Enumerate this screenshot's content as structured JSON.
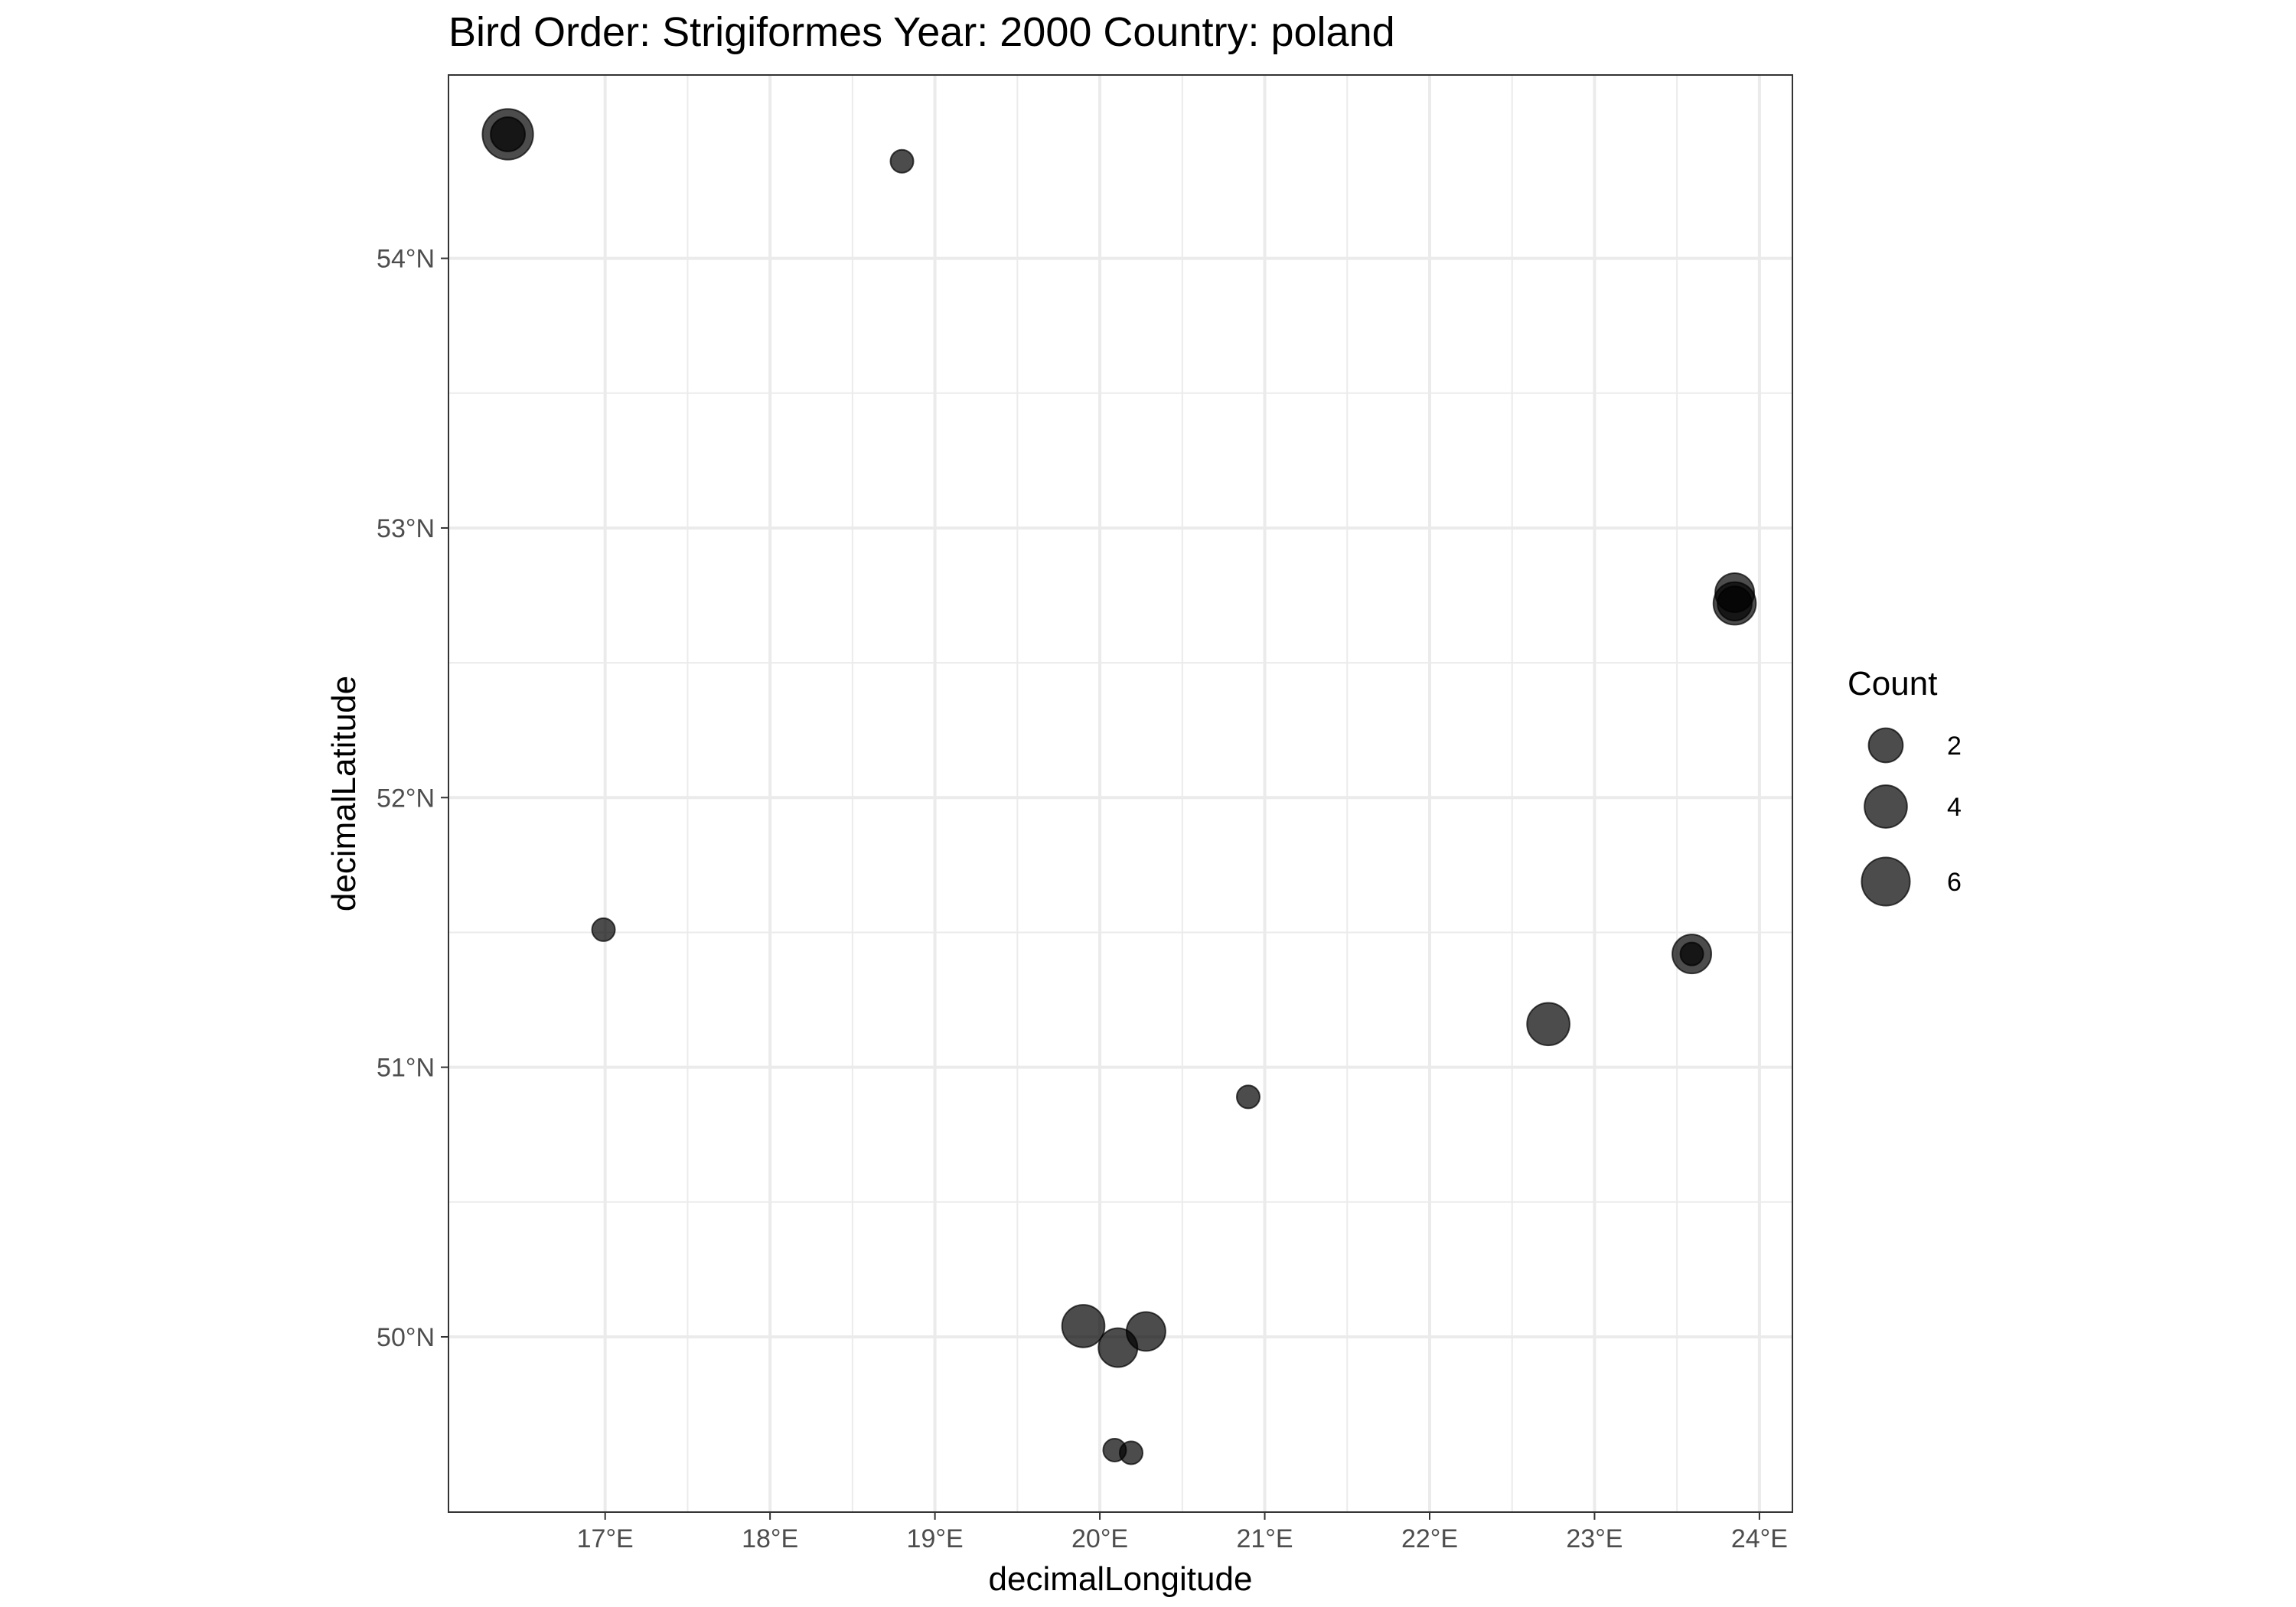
{
  "chart_data": {
    "type": "scatter",
    "title": "Bird Order: Strigiformes Year: 2000 Country: poland",
    "xlabel": "decimalLongitude",
    "ylabel": "decimalLatitude",
    "xlim": [
      16.05,
      24.2
    ],
    "ylim": [
      49.35,
      54.68
    ],
    "x_ticks": [
      17,
      18,
      19,
      20,
      21,
      22,
      23,
      24
    ],
    "x_tick_labels": [
      "17°E",
      "18°E",
      "19°E",
      "20°E",
      "21°E",
      "22°E",
      "23°E",
      "24°E"
    ],
    "y_ticks": [
      50,
      51,
      52,
      53,
      54
    ],
    "y_tick_labels": [
      "50°N",
      "51°N",
      "52°N",
      "53°N",
      "54°N"
    ],
    "grid": true,
    "point_color": "#000000",
    "point_alpha": 0.7,
    "legend": {
      "title": "Count",
      "position": "right",
      "entries": [
        {
          "label": "2",
          "value": 2
        },
        {
          "label": "4",
          "value": 4
        },
        {
          "label": "6",
          "value": 6
        }
      ]
    },
    "points": [
      {
        "x": 16.41,
        "y": 54.46,
        "count": 7
      },
      {
        "x": 16.41,
        "y": 54.46,
        "count": 2
      },
      {
        "x": 18.8,
        "y": 54.36,
        "count": 1
      },
      {
        "x": 16.99,
        "y": 51.51,
        "count": 1
      },
      {
        "x": 23.85,
        "y": 52.76,
        "count": 3
      },
      {
        "x": 23.85,
        "y": 52.72,
        "count": 4
      },
      {
        "x": 23.85,
        "y": 52.72,
        "count": 2
      },
      {
        "x": 23.59,
        "y": 51.42,
        "count": 3
      },
      {
        "x": 23.59,
        "y": 51.42,
        "count": 1
      },
      {
        "x": 22.72,
        "y": 51.16,
        "count": 4
      },
      {
        "x": 20.9,
        "y": 50.89,
        "count": 1
      },
      {
        "x": 19.9,
        "y": 50.04,
        "count": 4
      },
      {
        "x": 20.11,
        "y": 49.96,
        "count": 3
      },
      {
        "x": 20.28,
        "y": 50.02,
        "count": 3
      },
      {
        "x": 20.09,
        "y": 49.58,
        "count": 1
      },
      {
        "x": 20.19,
        "y": 49.57,
        "count": 1
      }
    ]
  }
}
